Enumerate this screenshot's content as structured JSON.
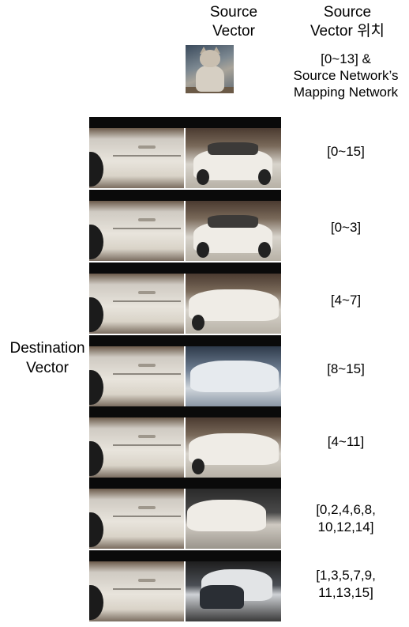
{
  "headers": {
    "source_vector": [
      "Source",
      "Vector"
    ],
    "source_vector_position": [
      "Source",
      "Vector 위치"
    ]
  },
  "source_row_label": [
    "[0~13] &",
    "Source Network’s",
    "Mapping Network"
  ],
  "destination_label": [
    "Destination",
    "Vector"
  ],
  "rows": [
    {
      "value": [
        "[0~15]"
      ]
    },
    {
      "value": [
        "[0~3]"
      ]
    },
    {
      "value": [
        "[4~7]"
      ]
    },
    {
      "value": [
        "[8~15]"
      ]
    },
    {
      "value": [
        "[4~11]"
      ]
    },
    {
      "value": [
        "[0,2,4,6,8,",
        "10,12,14]"
      ]
    },
    {
      "value": [
        "[1,3,5,7,9,",
        "11,13,15]"
      ]
    }
  ],
  "colors": {
    "bar": "#0a0a0a",
    "background": "#ffffff"
  }
}
